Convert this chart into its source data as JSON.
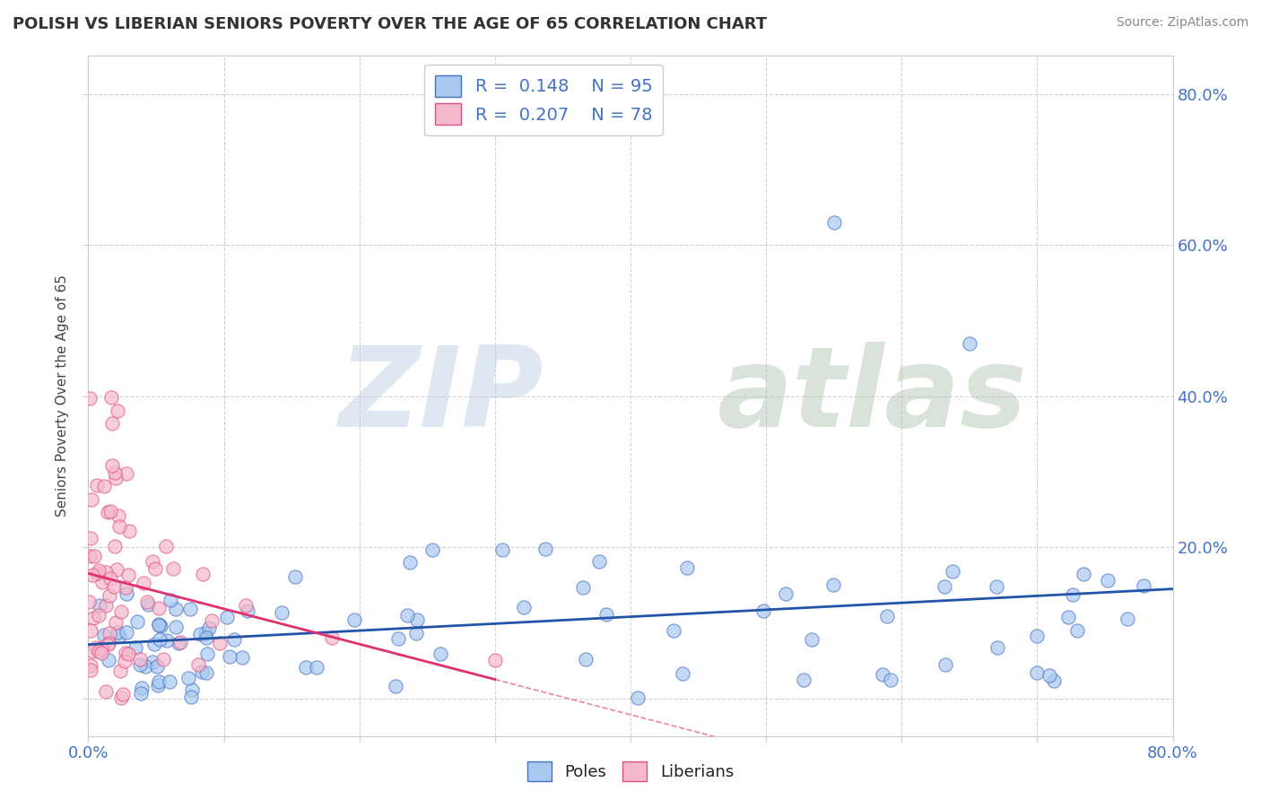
{
  "title": "POLISH VS LIBERIAN SENIORS POVERTY OVER THE AGE OF 65 CORRELATION CHART",
  "source": "Source: ZipAtlas.com",
  "ylabel": "Seniors Poverty Over the Age of 65",
  "xlim": [
    0,
    0.8
  ],
  "ylim": [
    -0.05,
    0.85
  ],
  "poles_R": 0.148,
  "poles_N": 95,
  "liberians_R": 0.207,
  "liberians_N": 78,
  "poles_color": "#a8c8f0",
  "poles_edge_color": "#4472c4",
  "liberians_color": "#f5b8cc",
  "liberians_edge_color": "#e05080",
  "trend_poles_color": "#2255aa",
  "trend_lib_color": "#e03070",
  "background_color": "#ffffff",
  "grid_color": "#cccccc"
}
